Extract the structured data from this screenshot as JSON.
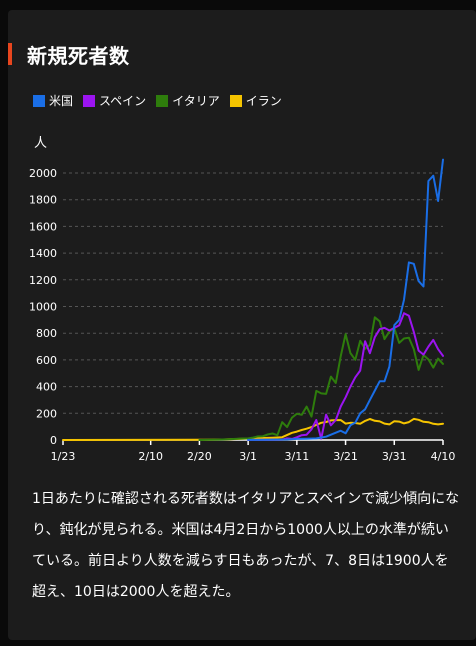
{
  "title": "新規死者数",
  "unit_label": "人",
  "description": "1日あたりに確認される死者数はイタリアとスペインで減少傾向になり、鈍化が見られる。米国は4月2日から1000人以上の水準が続いている。前日より人数を減らす日もあったが、7、8日は1900人を超え、10日は2000人を超えた。",
  "colors": {
    "background": "#1c1c1c",
    "accent": "#e8461e",
    "axis": "#ffffff",
    "grid": "#555555"
  },
  "chart_data": {
    "type": "line",
    "title": "新規死者数",
    "ylabel": "人",
    "ylim": [
      0,
      2000
    ],
    "yticks": [
      0,
      200,
      400,
      600,
      800,
      1000,
      1200,
      1400,
      1600,
      1800,
      2000
    ],
    "x_start": "1/23",
    "x_end": "4/10",
    "x_tick_labels": [
      "1/23",
      "2/10",
      "2/20",
      "3/1",
      "3/11",
      "3/21",
      "3/31",
      "4/10"
    ],
    "grid": "horizontal dashed",
    "legend_position": "top-left",
    "series": [
      {
        "name": "米国",
        "color": "#1a6ee6",
        "points": [
          [
            "3/1",
            1
          ],
          [
            "3/5",
            2
          ],
          [
            "3/9",
            4
          ],
          [
            "3/11",
            8
          ],
          [
            "3/13",
            10
          ],
          [
            "3/15",
            12
          ],
          [
            "3/17",
            25
          ],
          [
            "3/18",
            40
          ],
          [
            "3/19",
            55
          ],
          [
            "3/20",
            70
          ],
          [
            "3/21",
            50
          ],
          [
            "3/22",
            110
          ],
          [
            "3/23",
            130
          ],
          [
            "3/24",
            200
          ],
          [
            "3/25",
            230
          ],
          [
            "3/26",
            300
          ],
          [
            "3/27",
            370
          ],
          [
            "3/28",
            440
          ],
          [
            "3/29",
            440
          ],
          [
            "3/30",
            550
          ],
          [
            "3/31",
            860
          ],
          [
            "4/1",
            900
          ],
          [
            "4/2",
            1050
          ],
          [
            "4/3",
            1330
          ],
          [
            "4/4",
            1320
          ],
          [
            "4/5",
            1190
          ],
          [
            "4/6",
            1150
          ],
          [
            "4/7",
            1940
          ],
          [
            "4/8",
            1980
          ],
          [
            "4/9",
            1790
          ],
          [
            "4/10",
            2100
          ]
        ]
      },
      {
        "name": "スペイン",
        "color": "#9b14f0",
        "points": [
          [
            "3/1",
            0
          ],
          [
            "3/6",
            2
          ],
          [
            "3/8",
            3
          ],
          [
            "3/9",
            12
          ],
          [
            "3/10",
            8
          ],
          [
            "3/11",
            20
          ],
          [
            "3/12",
            36
          ],
          [
            "3/13",
            40
          ],
          [
            "3/14",
            80
          ],
          [
            "3/15",
            150
          ],
          [
            "3/16",
            10
          ],
          [
            "3/17",
            190
          ],
          [
            "3/18",
            110
          ],
          [
            "3/19",
            150
          ],
          [
            "3/20",
            250
          ],
          [
            "3/21",
            320
          ],
          [
            "3/22",
            400
          ],
          [
            "3/23",
            470
          ],
          [
            "3/24",
            520
          ],
          [
            "3/25",
            740
          ],
          [
            "3/26",
            650
          ],
          [
            "3/27",
            770
          ],
          [
            "3/28",
            830
          ],
          [
            "3/29",
            840
          ],
          [
            "3/30",
            820
          ],
          [
            "3/31",
            840
          ],
          [
            "4/1",
            860
          ],
          [
            "4/2",
            950
          ],
          [
            "4/3",
            930
          ],
          [
            "4/4",
            810
          ],
          [
            "4/5",
            670
          ],
          [
            "4/6",
            640
          ],
          [
            "4/7",
            700
          ],
          [
            "4/8",
            750
          ],
          [
            "4/9",
            680
          ],
          [
            "4/10",
            630
          ]
        ]
      },
      {
        "name": "イタリア",
        "color": "#2e7d0c",
        "points": [
          [
            "2/20",
            0
          ],
          [
            "2/21",
            1
          ],
          [
            "2/22",
            2
          ],
          [
            "2/24",
            3
          ],
          [
            "2/26",
            5
          ],
          [
            "2/28",
            10
          ],
          [
            "3/1",
            12
          ],
          [
            "3/2",
            18
          ],
          [
            "3/3",
            27
          ],
          [
            "3/4",
            28
          ],
          [
            "3/5",
            41
          ],
          [
            "3/6",
            49
          ],
          [
            "3/7",
            36
          ],
          [
            "3/8",
            133
          ],
          [
            "3/9",
            97
          ],
          [
            "3/10",
            168
          ],
          [
            "3/11",
            196
          ],
          [
            "3/12",
            189
          ],
          [
            "3/13",
            250
          ],
          [
            "3/14",
            175
          ],
          [
            "3/15",
            368
          ],
          [
            "3/16",
            349
          ],
          [
            "3/17",
            345
          ],
          [
            "3/18",
            475
          ],
          [
            "3/19",
            427
          ],
          [
            "3/20",
            627
          ],
          [
            "3/21",
            793
          ],
          [
            "3/22",
            651
          ],
          [
            "3/23",
            601
          ],
          [
            "3/24",
            743
          ],
          [
            "3/25",
            683
          ],
          [
            "3/26",
            712
          ],
          [
            "3/27",
            919
          ],
          [
            "3/28",
            889
          ],
          [
            "3/29",
            756
          ],
          [
            "3/30",
            812
          ],
          [
            "3/31",
            837
          ],
          [
            "4/1",
            727
          ],
          [
            "4/2",
            760
          ],
          [
            "4/3",
            766
          ],
          [
            "4/4",
            681
          ],
          [
            "4/5",
            525
          ],
          [
            "4/6",
            636
          ],
          [
            "4/7",
            604
          ],
          [
            "4/8",
            542
          ],
          [
            "4/9",
            610
          ],
          [
            "4/10",
            570
          ]
        ]
      },
      {
        "name": "イラン",
        "color": "#f5c400",
        "points": [
          [
            "1/23",
            0
          ],
          [
            "2/19",
            2
          ],
          [
            "2/21",
            2
          ],
          [
            "2/23",
            3
          ],
          [
            "2/25",
            4
          ],
          [
            "2/27",
            7
          ],
          [
            "2/29",
            9
          ],
          [
            "3/2",
            12
          ],
          [
            "3/4",
            15
          ],
          [
            "3/6",
            17
          ],
          [
            "3/8",
            21
          ],
          [
            "3/10",
            54
          ],
          [
            "3/11",
            63
          ],
          [
            "3/12",
            75
          ],
          [
            "3/13",
            85
          ],
          [
            "3/14",
            97
          ],
          [
            "3/15",
            113
          ],
          [
            "3/16",
            129
          ],
          [
            "3/17",
            135
          ],
          [
            "3/18",
            147
          ],
          [
            "3/19",
            149
          ],
          [
            "3/20",
            149
          ],
          [
            "3/21",
            123
          ],
          [
            "3/22",
            129
          ],
          [
            "3/23",
            127
          ],
          [
            "3/24",
            122
          ],
          [
            "3/25",
            143
          ],
          [
            "3/26",
            157
          ],
          [
            "3/27",
            144
          ],
          [
            "3/28",
            139
          ],
          [
            "3/29",
            123
          ],
          [
            "3/30",
            117
          ],
          [
            "3/31",
            141
          ],
          [
            "4/1",
            138
          ],
          [
            "4/2",
            124
          ],
          [
            "4/3",
            134
          ],
          [
            "4/4",
            158
          ],
          [
            "4/5",
            151
          ],
          [
            "4/6",
            136
          ],
          [
            "4/7",
            133
          ],
          [
            "4/8",
            121
          ],
          [
            "4/9",
            117
          ],
          [
            "4/10",
            122
          ]
        ]
      }
    ]
  }
}
